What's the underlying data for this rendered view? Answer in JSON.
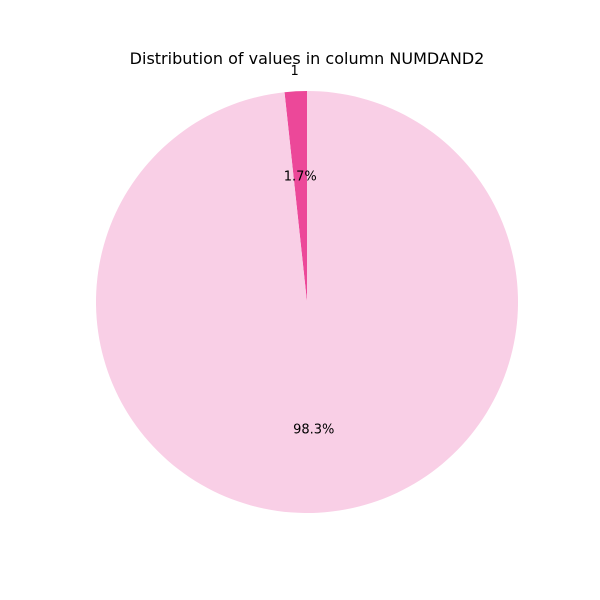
{
  "chart_data": {
    "type": "pie",
    "title": "Distribution of values in column NUMDAND2",
    "slices": [
      {
        "label": "1",
        "percent": 1.7,
        "percent_label": "1.7%",
        "color": "#ec4899"
      },
      {
        "label": "",
        "percent": 98.3,
        "percent_label": "98.3%",
        "color": "#f9cfe6"
      }
    ],
    "start_angle_deg": 90,
    "direction": "counterclockwise",
    "legend": "none"
  }
}
